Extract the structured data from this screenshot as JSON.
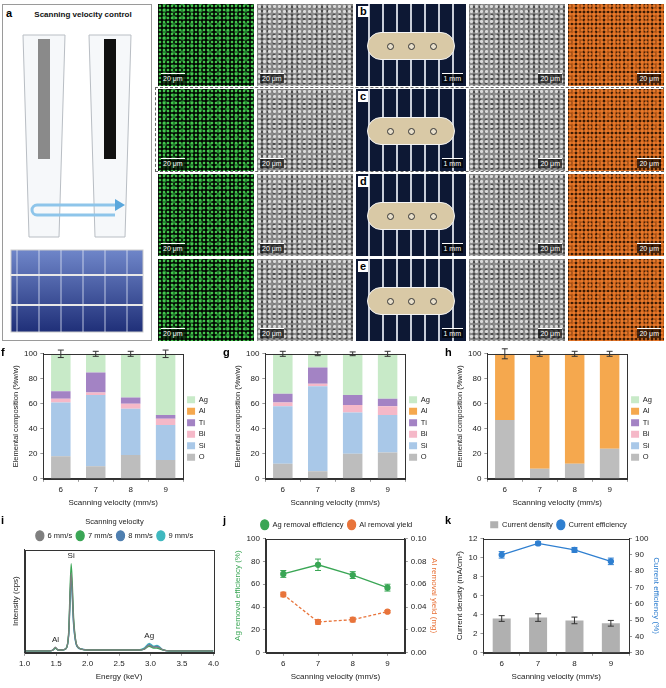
{
  "panel_a": {
    "label": "a",
    "title": "Scanning velocity control"
  },
  "image_panels": [
    {
      "label": "b",
      "scale_bars": [
        "20 μm",
        "20 μm",
        "1 mm",
        "20 μm",
        "20 μm"
      ]
    },
    {
      "label": "c",
      "scale_bars": [
        "20 μm",
        "20 μm",
        "1 mm",
        "20 μm",
        "20 μm"
      ]
    },
    {
      "label": "d",
      "scale_bars": [
        "20 μm",
        "20 μm",
        "1 mm",
        "20 μm",
        "20 μm"
      ]
    },
    {
      "label": "e",
      "scale_bars": [
        "20 μm",
        "20 μm",
        "1 mm",
        "20 μm",
        "20 μm"
      ]
    }
  ],
  "chart_data": [
    {
      "panel": "f",
      "type": "bar",
      "stacked": true,
      "grid": false,
      "legend": "right",
      "x_label": "Scanning velocity (mm/s)",
      "y_label": "Elemental composition (%w/w)",
      "categories": [
        "6",
        "7",
        "8",
        "9"
      ],
      "ylim": [
        0,
        100
      ],
      "yticks": [
        0,
        20,
        40,
        60,
        80,
        100
      ],
      "series": [
        {
          "name": "O",
          "color": "#bdbdbd",
          "values": [
            18,
            10,
            19,
            15
          ]
        },
        {
          "name": "Si",
          "color": "#a9c8e8",
          "values": [
            43,
            57,
            37,
            28
          ]
        },
        {
          "name": "Bi",
          "color": "#f5b8c8",
          "values": [
            3,
            2,
            4,
            5
          ]
        },
        {
          "name": "Ti",
          "color": "#a383c4",
          "values": [
            6,
            16,
            5,
            3
          ]
        },
        {
          "name": "Al",
          "color": "#f5a84e",
          "values": [
            0,
            0,
            0,
            0
          ]
        },
        {
          "name": "Ag",
          "color": "#c8eac8",
          "values": [
            30,
            15,
            35,
            49
          ],
          "errors": [
            3,
            2,
            2,
            3
          ]
        }
      ]
    },
    {
      "panel": "g",
      "type": "bar",
      "stacked": true,
      "grid": false,
      "legend": "right",
      "x_label": "Scanning velocity (mm/s)",
      "y_label": "Elemental composition (%w/w)",
      "categories": [
        "6",
        "7",
        "8",
        "9"
      ],
      "ylim": [
        0,
        100
      ],
      "yticks": [
        0,
        20,
        40,
        60,
        80,
        100
      ],
      "series": [
        {
          "name": "O",
          "color": "#bdbdbd",
          "values": [
            12,
            6,
            20,
            21
          ]
        },
        {
          "name": "Si",
          "color": "#a9c8e8",
          "values": [
            46,
            68,
            33,
            30
          ]
        },
        {
          "name": "Bi",
          "color": "#f5b8c8",
          "values": [
            3,
            2,
            6,
            7
          ]
        },
        {
          "name": "Ti",
          "color": "#a383c4",
          "values": [
            7,
            13,
            8,
            6
          ]
        },
        {
          "name": "Al",
          "color": "#f5a84e",
          "values": [
            0,
            0,
            0,
            0
          ]
        },
        {
          "name": "Ag",
          "color": "#c8eac8",
          "values": [
            32,
            11,
            33,
            36
          ],
          "errors": [
            2,
            1.5,
            1.5,
            2
          ]
        }
      ]
    },
    {
      "panel": "h",
      "type": "bar",
      "stacked": true,
      "grid": false,
      "legend": "right",
      "x_label": "Scanning velocity (mm/s)",
      "y_label": "Elemental composition (%w/w)",
      "categories": [
        "6",
        "7",
        "8",
        "9"
      ],
      "ylim": [
        0,
        100
      ],
      "yticks": [
        0,
        20,
        40,
        60,
        80,
        100
      ],
      "series": [
        {
          "name": "O",
          "color": "#bdbdbd",
          "values": [
            47,
            8,
            12,
            24
          ]
        },
        {
          "name": "Si",
          "color": "#a9c8e8",
          "values": [
            0,
            0,
            0,
            0
          ]
        },
        {
          "name": "Bi",
          "color": "#f5b8c8",
          "values": [
            0,
            0,
            0,
            0
          ]
        },
        {
          "name": "Ti",
          "color": "#a383c4",
          "values": [
            0,
            0,
            0,
            0
          ]
        },
        {
          "name": "Al",
          "color": "#f5a84e",
          "values": [
            53,
            92,
            88,
            76
          ],
          "errors": [
            4,
            2,
            2,
            2
          ]
        },
        {
          "name": "Ag",
          "color": "#c8eac8",
          "values": [
            0,
            0,
            0,
            0
          ]
        }
      ]
    },
    {
      "panel": "i",
      "type": "line",
      "grid": false,
      "legend": "top",
      "legend_title": "Scanning velocity",
      "tick_labels": "x",
      "x_label": "Energy (keV)",
      "y_label": "Intensity (cps)",
      "x": [
        1.0,
        1.2,
        1.4,
        1.45,
        1.49,
        1.53,
        1.6,
        1.65,
        1.7,
        1.74,
        1.78,
        1.83,
        1.9,
        2.0,
        2.2,
        2.5,
        2.8,
        2.9,
        2.98,
        3.05,
        3.1,
        3.15,
        3.2,
        3.3,
        3.5,
        3.8,
        4.0
      ],
      "xlim": [
        1,
        4
      ],
      "xticks": [
        {
          "value": 1,
          "label": "1.0"
        },
        1.5,
        {
          "value": 2,
          "label": "2.0"
        },
        2.5,
        {
          "value": 3,
          "label": "3.0"
        },
        3.5,
        {
          "value": 4,
          "label": "4.0"
        }
      ],
      "ylim": [
        0,
        110
      ],
      "yticks": [],
      "series": [
        {
          "name": "6 mm/s",
          "color": "#7f7f7f",
          "values": [
            2,
            2,
            2,
            3,
            6,
            3,
            3,
            4,
            20,
            85,
            32,
            8,
            4,
            3,
            3,
            3,
            3,
            4,
            8,
            6,
            6,
            5,
            3,
            2,
            2,
            2,
            2
          ]
        },
        {
          "name": "7 mm/s",
          "color": "#3aa655",
          "values": [
            2,
            2,
            2,
            3,
            5,
            3,
            3,
            4,
            22,
            95,
            36,
            8,
            4,
            3,
            3,
            3,
            3,
            4,
            7,
            5,
            5,
            4,
            3,
            2,
            2,
            2,
            2
          ]
        },
        {
          "name": "8 mm/s",
          "color": "#4f7fb0",
          "values": [
            2,
            2,
            2,
            3,
            5,
            3,
            3,
            4,
            19,
            80,
            30,
            7,
            4,
            3,
            3,
            3,
            3,
            4,
            9,
            6,
            7,
            5,
            3,
            2,
            2,
            2,
            2
          ]
        },
        {
          "name": "9 mm/s",
          "color": "#3fb8bf",
          "values": [
            2,
            2,
            2,
            3,
            5,
            3,
            3,
            4,
            18,
            75,
            28,
            7,
            4,
            3,
            3,
            3,
            3,
            5,
            10,
            7,
            8,
            6,
            3,
            2,
            2,
            2,
            2
          ]
        }
      ],
      "annotations": [
        {
          "text": "Al",
          "x": 1.49,
          "y": 10
        },
        {
          "text": "Si",
          "x": 1.74,
          "y": 99
        },
        {
          "text": "Ag",
          "x": 2.98,
          "y": 14
        }
      ]
    },
    {
      "panel": "j",
      "type": "line",
      "grid": false,
      "legend": "top",
      "x_label": "Scanning velocity (mm/s)",
      "y_label": "Ag removal efficiency (%)",
      "y2_label": "Al removal yield (mg)",
      "categories": [
        "6",
        "7",
        "8",
        "9"
      ],
      "ylim": [
        0,
        100
      ],
      "yticks": [
        0,
        20,
        40,
        60,
        80,
        100
      ],
      "y2lim": [
        0,
        0.1
      ],
      "y2ticks": [
        {
          "value": 0,
          "label": "0.00"
        },
        0.02,
        0.04,
        0.06,
        0.08,
        {
          "value": 0.1,
          "label": "0.10"
        }
      ],
      "series": [
        {
          "name": "Ag removal efficiency",
          "color": "#3aa655",
          "values": [
            69,
            77,
            68,
            57
          ],
          "errors": [
            3,
            5,
            3,
            3
          ],
          "marker": "circle",
          "line_style": "solid"
        },
        {
          "name": "Al removal yield",
          "color": "#e8743b",
          "values": [
            0.051,
            0.027,
            0.029,
            0.036
          ],
          "errors": [
            0.002,
            0.002,
            0.002,
            0.001
          ],
          "axis": "y2",
          "marker": "circle",
          "line_style": "dashed"
        }
      ]
    },
    {
      "panel": "k",
      "type": "bar",
      "grid": false,
      "legend": "top",
      "x_label": "Scanning velocity (mm/s)",
      "y_label": "Current density (mA/cm²)",
      "y2_label": "Current efficiency (%)",
      "categories": [
        "6",
        "7",
        "8",
        "9"
      ],
      "ylim": [
        0,
        12
      ],
      "yticks": [
        0,
        2,
        4,
        6,
        8,
        10,
        12
      ],
      "y2lim": [
        30,
        100
      ],
      "y2ticks": [
        30,
        40,
        50,
        60,
        70,
        80,
        90,
        100
      ],
      "series": [
        {
          "name": "Current density",
          "type": "bar",
          "color": "#b0b0b0",
          "values": [
            3.6,
            3.7,
            3.4,
            3.1
          ],
          "errors": [
            0.3,
            0.4,
            0.35,
            0.3
          ]
        },
        {
          "name": "Current efficiency",
          "type": "line",
          "color": "#2f7fd0",
          "values": [
            90,
            97,
            93,
            86
          ],
          "errors": [
            2,
            1,
            1.5,
            2
          ],
          "axis": "y2",
          "marker": "circle",
          "line_style": "solid"
        }
      ]
    }
  ]
}
